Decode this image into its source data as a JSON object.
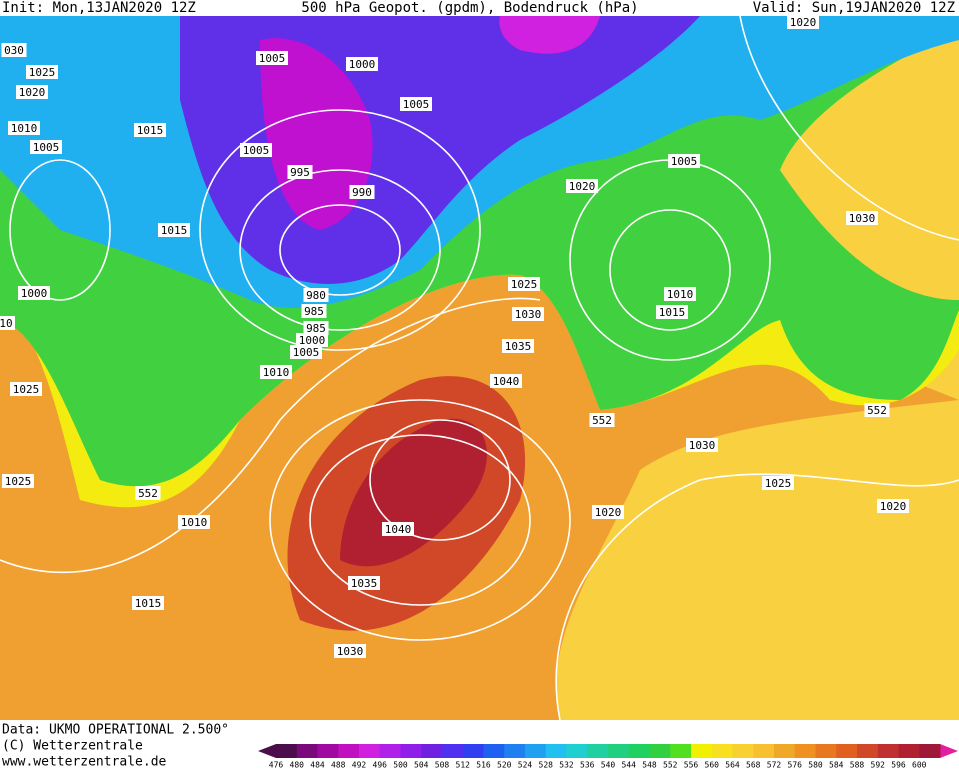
{
  "header": {
    "init": "Init: Mon,13JAN2020 12Z",
    "title": "500 hPa Geopot. (gpdm), Bodendruck (hPa)",
    "valid": "Valid: Sun,19JAN2020 12Z"
  },
  "footer": {
    "data": "Data: UKMO OPERATIONAL 2.500°",
    "copyright": "(C) Wetterzentrale",
    "url": "www.wetterzentrale.de"
  },
  "isobar_labels": [
    "030",
    "1025",
    "1020",
    "1010",
    "1005",
    "1015",
    "1005",
    "1000",
    "1005",
    "1005",
    "995",
    "990",
    "1015",
    "1000",
    "980",
    "985",
    "985",
    "1000",
    "1005",
    "1010",
    "10",
    "1025",
    "1025",
    "1030",
    "1035",
    "1040",
    "1020",
    "1020",
    "1005",
    "1010",
    "1015",
    "1030",
    "552",
    "1030",
    "1025",
    "552",
    "1010",
    "1025",
    "1020",
    "1040",
    "1020",
    "552",
    "1035",
    "1015",
    "1030"
  ],
  "color_scale": {
    "values": [
      476,
      480,
      484,
      488,
      492,
      496,
      500,
      504,
      508,
      512,
      516,
      520,
      524,
      528,
      532,
      536,
      540,
      544,
      548,
      552,
      556,
      560,
      564,
      568,
      572,
      576,
      580,
      584,
      588,
      592,
      596,
      600
    ],
    "colors": [
      "#4b0d4b",
      "#7a0a7a",
      "#a00aa0",
      "#c010c0",
      "#d020e0",
      "#b020e8",
      "#9020e8",
      "#7020e0",
      "#5030f0",
      "#3040f0",
      "#2060f0",
      "#2080f0",
      "#20a0f0",
      "#20c0f0",
      "#20d0d0",
      "#20d0a0",
      "#20d080",
      "#20d060",
      "#30d040",
      "#50e020",
      "#f0f000",
      "#f8e020",
      "#f8d030",
      "#f8c030",
      "#f0a828",
      "#f09020",
      "#e87820",
      "#e06020",
      "#d04828",
      "#c03030",
      "#b02030",
      "#a01838"
    ]
  }
}
